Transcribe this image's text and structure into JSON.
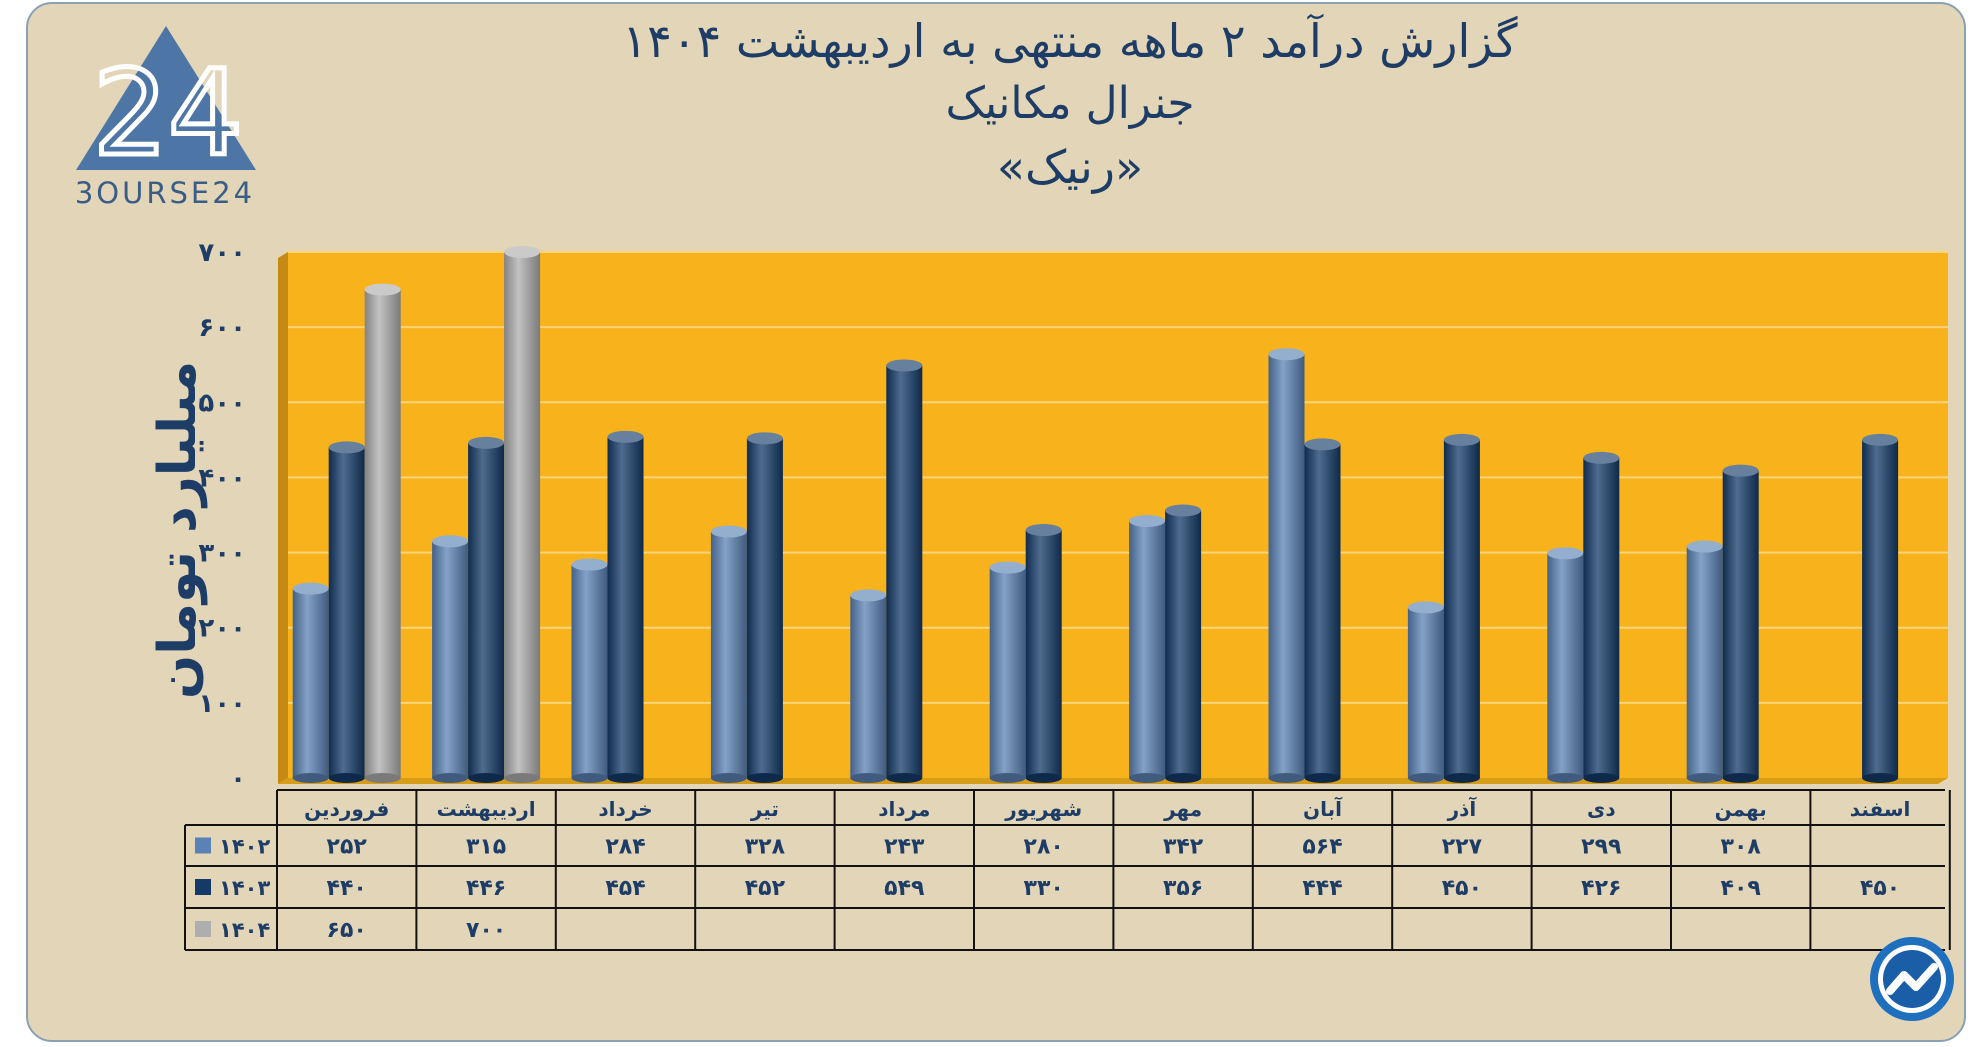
{
  "header": {
    "title_line1": "گزارش  درآمد ۲ ماهه منتهی به اردیبهشت ۱۴۰۴",
    "title_line2": "جنرال مکانیک",
    "title_line3": "«رنیک»"
  },
  "logo": {
    "text": "3OURSE24",
    "glyph": "24"
  },
  "chart_data": {
    "type": "bar",
    "ylabel": "میلیارد تومان",
    "ylim": [
      0,
      700
    ],
    "yticks": [
      "۰",
      "۱۰۰",
      "۲۰۰",
      "۳۰۰",
      "۴۰۰",
      "۵۰۰",
      "۶۰۰",
      "۷۰۰"
    ],
    "grid": true,
    "background": "#f8b21c",
    "categories": [
      "فروردین",
      "اردیبهشت",
      "خرداد",
      "تیر",
      "مرداد",
      "شهریور",
      "مهر",
      "آبان",
      "آذر",
      "دی",
      "بهمن",
      "اسفند"
    ],
    "series": [
      {
        "name": "۱۴۰۲",
        "color": "#5b82b4",
        "values": [
          252,
          315,
          284,
          328,
          243,
          280,
          342,
          564,
          227,
          299,
          308,
          null
        ],
        "labels": [
          "۲۵۲",
          "۳۱۵",
          "۲۸۴",
          "۳۲۸",
          "۲۴۳",
          "۲۸۰",
          "۳۴۲",
          "۵۶۴",
          "۲۲۷",
          "۲۹۹",
          "۳۰۸",
          ""
        ]
      },
      {
        "name": "۱۴۰۳",
        "color": "#143b68",
        "values": [
          440,
          446,
          454,
          452,
          549,
          330,
          356,
          444,
          450,
          426,
          409,
          450
        ],
        "labels": [
          "۴۴۰",
          "۴۴۶",
          "۴۵۴",
          "۴۵۲",
          "۵۴۹",
          "۳۳۰",
          "۳۵۶",
          "۴۴۴",
          "۴۵۰",
          "۴۲۶",
          "۴۰۹",
          "۴۵۰"
        ]
      },
      {
        "name": "۱۴۰۴",
        "color": "#aeaeae",
        "values": [
          650,
          700,
          null,
          null,
          null,
          null,
          null,
          null,
          null,
          null,
          null,
          null
        ],
        "labels": [
          "۶۵۰",
          "۷۰۰",
          "",
          "",
          "",
          "",
          "",
          "",
          "",
          "",
          "",
          ""
        ]
      }
    ]
  }
}
